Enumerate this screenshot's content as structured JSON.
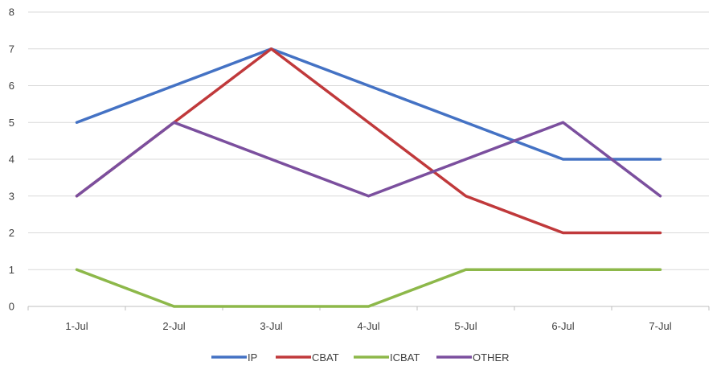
{
  "chart_data": {
    "type": "line",
    "categories": [
      "1-Jul",
      "2-Jul",
      "3-Jul",
      "4-Jul",
      "5-Jul",
      "6-Jul",
      "7-Jul"
    ],
    "ylim": [
      0,
      8
    ],
    "yticks": [
      "0",
      "1",
      "2",
      "3",
      "4",
      "5",
      "6",
      "7",
      "8"
    ],
    "grid": true,
    "legend_position": "bottom",
    "series": [
      {
        "name": "IP",
        "color": "#4472C4",
        "values": [
          5,
          6,
          7,
          6,
          5,
          4,
          4
        ]
      },
      {
        "name": "CBAT",
        "color": "#C0393B",
        "values": [
          3,
          5,
          7,
          5,
          3,
          2,
          2
        ]
      },
      {
        "name": "ICBAT",
        "color": "#8DB84A",
        "values": [
          1,
          0,
          0,
          0,
          1,
          1,
          1
        ]
      },
      {
        "name": "OTHER",
        "color": "#7B4F9E",
        "values": [
          3,
          5,
          4,
          3,
          4,
          5,
          3
        ]
      }
    ]
  }
}
